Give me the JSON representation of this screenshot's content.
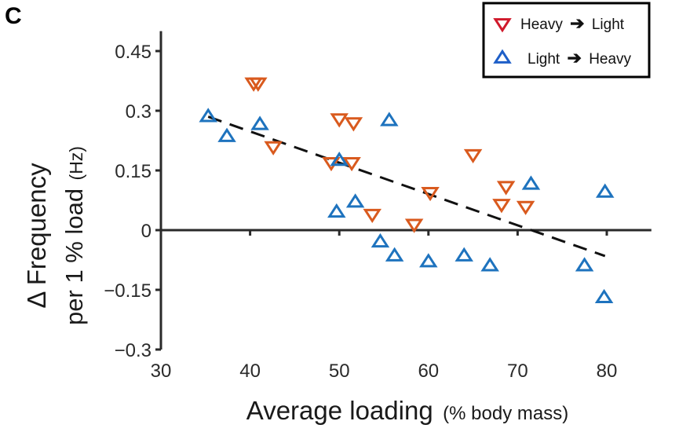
{
  "panel_label": "C",
  "chart_data": {
    "type": "scatter",
    "title": "",
    "xlabel": "Average loading",
    "xlabel_units": "(% body mass)",
    "ylabel_line1": "Δ Frequency",
    "ylabel_line2": "per 1 % load",
    "ylabel_units": "(Hz)",
    "xlim": [
      30,
      85
    ],
    "ylim": [
      -0.3,
      0.5
    ],
    "xticks": [
      30,
      40,
      50,
      60,
      70,
      80
    ],
    "xtick_labels": [
      "30",
      "40",
      "50",
      "60",
      "70",
      "80"
    ],
    "yticks": [
      -0.3,
      -0.15,
      0,
      0.15,
      0.3,
      0.45
    ],
    "ytick_labels": [
      "−0.3",
      "−0.15",
      "0",
      "0.15",
      "0.3",
      "0.45"
    ],
    "grid": false,
    "zero_line": true,
    "legend_position": "top-right",
    "series": [
      {
        "name": "Heavy → Light",
        "label_from": "Heavy",
        "label_to": "Light",
        "marker": "triangle-down",
        "color": "#D95A1E",
        "legend_color": "#D0192B",
        "points": [
          [
            40.4,
            0.37
          ],
          [
            40.9,
            0.37
          ],
          [
            42.6,
            0.21
          ],
          [
            49.1,
            0.17
          ],
          [
            50.0,
            0.28
          ],
          [
            51.6,
            0.27
          ],
          [
            51.4,
            0.17
          ],
          [
            53.7,
            0.04
          ],
          [
            58.4,
            0.015
          ],
          [
            60.2,
            0.095
          ],
          [
            65.0,
            0.19
          ],
          [
            68.7,
            0.11
          ],
          [
            68.2,
            0.065
          ],
          [
            70.9,
            0.06
          ]
        ]
      },
      {
        "name": "Light → Heavy",
        "label_from": "Light",
        "label_to": "Heavy",
        "marker": "triangle-up",
        "color": "#1E73BE",
        "legend_color": "#1E5FC8",
        "points": [
          [
            35.3,
            0.285
          ],
          [
            37.4,
            0.235
          ],
          [
            41.1,
            0.265
          ],
          [
            50.0,
            0.175
          ],
          [
            49.7,
            0.045
          ],
          [
            51.8,
            0.07
          ],
          [
            55.6,
            0.275
          ],
          [
            54.6,
            -0.03
          ],
          [
            56.2,
            -0.065
          ],
          [
            60.0,
            -0.08
          ],
          [
            64.0,
            -0.065
          ],
          [
            66.9,
            -0.09
          ],
          [
            71.5,
            0.115
          ],
          [
            79.8,
            0.095
          ],
          [
            77.5,
            -0.09
          ],
          [
            79.7,
            -0.17
          ]
        ]
      }
    ],
    "fit_line": {
      "style": "dashed",
      "color": "#111111",
      "x": [
        35.3,
        79.8
      ],
      "y": [
        0.285,
        -0.065
      ]
    }
  }
}
